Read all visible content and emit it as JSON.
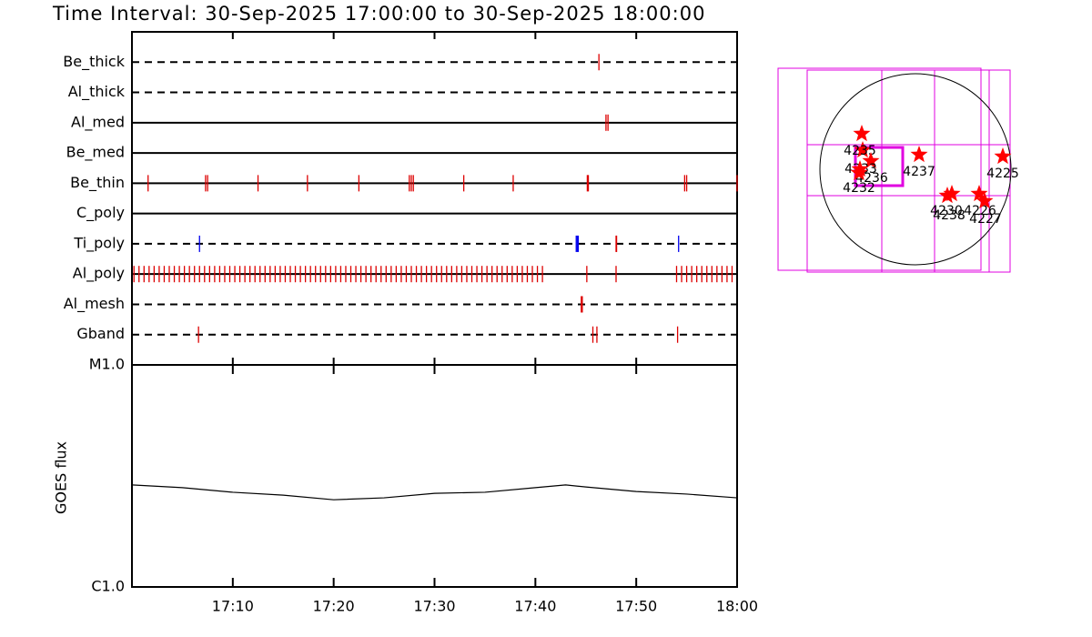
{
  "chart_data": [
    {
      "type": "events",
      "title": "Time Interval: 30-Sep-2025 17:00:00 to 30-Sep-2025 18:00:00",
      "xlim": [
        0,
        60
      ],
      "xticks": [
        {
          "value": 10,
          "label": "17:10"
        },
        {
          "value": 20,
          "label": "17:20"
        },
        {
          "value": 30,
          "label": "17:30"
        },
        {
          "value": 40,
          "label": "17:40"
        },
        {
          "value": 50,
          "label": "17:50"
        },
        {
          "value": 60,
          "label": "18:00"
        }
      ],
      "series": [
        {
          "name": "Be_thick",
          "line": "dashed",
          "groups": [
            {
              "color": "#dd0000",
              "times": [
                46.3
              ]
            }
          ]
        },
        {
          "name": "Al_thick",
          "line": "dashed",
          "groups": []
        },
        {
          "name": "Al_med",
          "line": "solid",
          "groups": [
            {
              "color": "#dd0000",
              "times": [
                47.0,
                47.2
              ]
            }
          ]
        },
        {
          "name": "Be_med",
          "line": "solid",
          "groups": []
        },
        {
          "name": "Be_thin",
          "line": "solid",
          "groups": [
            {
              "color": "#dd0000",
              "times": [
                1.6,
                7.3,
                7.5,
                12.5,
                17.4,
                22.5,
                27.5,
                27.7,
                27.9,
                32.9,
                37.8,
                45.15,
                45.25,
                54.8,
                55.0,
                60.0
              ]
            }
          ]
        },
        {
          "name": "C_poly",
          "line": "solid",
          "groups": []
        },
        {
          "name": "Ti_poly",
          "line": "dashed",
          "groups": [
            {
              "color": "#0000ee",
              "times": [
                6.7,
                44.05,
                44.15,
                44.25,
                54.2
              ]
            },
            {
              "color": "#dd0000",
              "times": [
                48.0,
                48.05
              ]
            }
          ]
        },
        {
          "name": "Al_poly",
          "line": "solid",
          "groups": [
            {
              "color": "#dd0000",
              "times": [
                0.2,
                0.7,
                1.2,
                1.7,
                2.2,
                2.7,
                3.2,
                3.7,
                4.2,
                4.7,
                5.2,
                5.7,
                6.2,
                6.7,
                7.2,
                7.7,
                8.2,
                8.7,
                9.2,
                9.7,
                10.2,
                10.7,
                11.2,
                11.7,
                12.2,
                12.7,
                13.2,
                13.7,
                14.2,
                14.7,
                15.2,
                15.7,
                16.2,
                16.7,
                17.2,
                17.7,
                18.2,
                18.7,
                19.2,
                19.7,
                20.2,
                20.7,
                21.2,
                21.7,
                22.2,
                22.7,
                23.2,
                23.7,
                24.2,
                24.7,
                25.2,
                25.7,
                26.2,
                26.7,
                27.2,
                27.7,
                28.2,
                28.7,
                29.2,
                29.7,
                30.2,
                30.7,
                31.2,
                31.7,
                32.2,
                32.7,
                33.2,
                33.7,
                34.2,
                34.7,
                35.2,
                35.7,
                36.2,
                36.7,
                37.2,
                37.7,
                38.2,
                38.7,
                39.2,
                39.7,
                40.2,
                40.7,
                45.1,
                48.0,
                54.0,
                54.5,
                55.0,
                55.5,
                56.0,
                56.5,
                57.0,
                57.5,
                58.0,
                58.5,
                59.0,
                59.5
              ]
            }
          ]
        },
        {
          "name": "Al_mesh",
          "line": "dashed",
          "groups": [
            {
              "color": "#dd0000",
              "times": [
                44.55,
                44.65
              ]
            }
          ]
        },
        {
          "name": "Gband",
          "line": "dashed",
          "groups": [
            {
              "color": "#dd0000",
              "times": [
                6.6,
                45.7,
                46.1,
                54.1
              ]
            }
          ]
        }
      ]
    },
    {
      "type": "line",
      "ylabel": "GOES flux",
      "log_y": true,
      "xlim": [
        0,
        60
      ],
      "ylim": [
        1e-06,
        1e-05
      ],
      "yticks": [
        {
          "value": 1e-05,
          "label": "M1.0"
        },
        {
          "value": 1e-06,
          "label": "C1.0"
        }
      ],
      "x": [
        0,
        5,
        10,
        15,
        20,
        25,
        30,
        35,
        40,
        43,
        45,
        50,
        55,
        60
      ],
      "series": [
        {
          "color": "#000000",
          "values": [
            2.88e-06,
            2.8e-06,
            2.67e-06,
            2.59e-06,
            2.47e-06,
            2.52e-06,
            2.64e-06,
            2.67e-06,
            2.8e-06,
            2.88e-06,
            2.82e-06,
            2.69e-06,
            2.62e-06,
            2.52e-06
          ]
        }
      ]
    }
  ],
  "map": {
    "regions": [
      {
        "label": "4235"
      },
      {
        "label": "4233"
      },
      {
        "label": "4236"
      },
      {
        "label": "4232"
      },
      {
        "label": "4237"
      },
      {
        "label": "4225"
      },
      {
        "label": "4230"
      },
      {
        "label": "4238"
      },
      {
        "label": "4226"
      },
      {
        "label": "4227"
      }
    ]
  }
}
